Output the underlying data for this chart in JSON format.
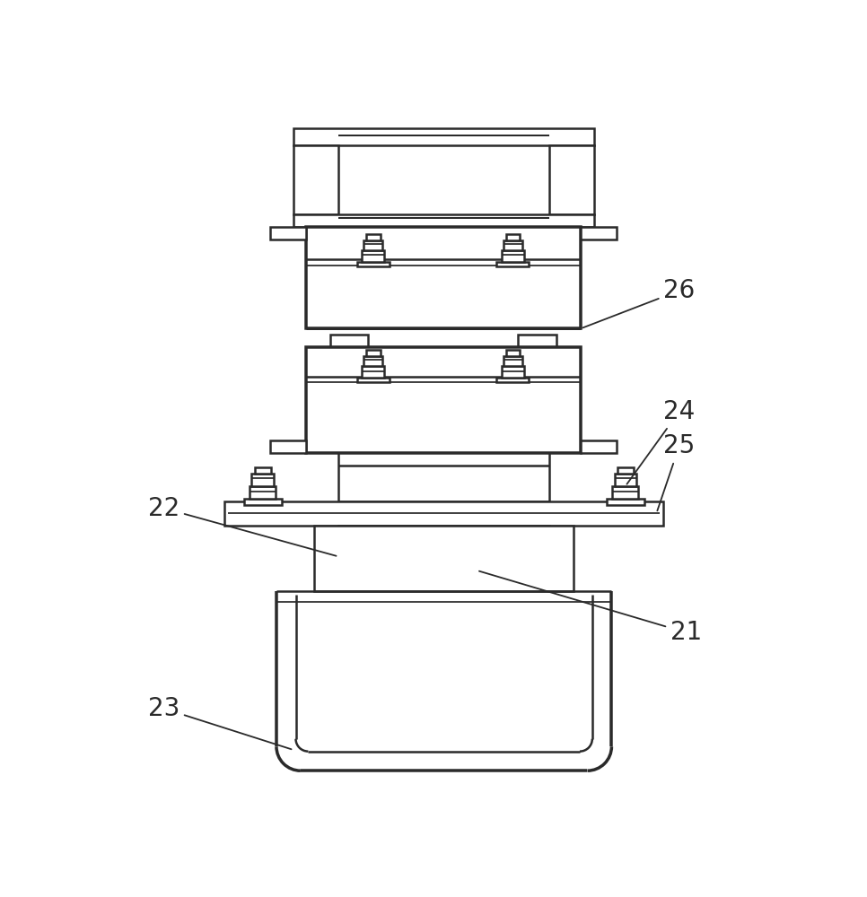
{
  "background_color": "#ffffff",
  "line_color": "#2a2a2a",
  "lw": 1.8,
  "fig_width": 9.66,
  "fig_height": 10.0
}
